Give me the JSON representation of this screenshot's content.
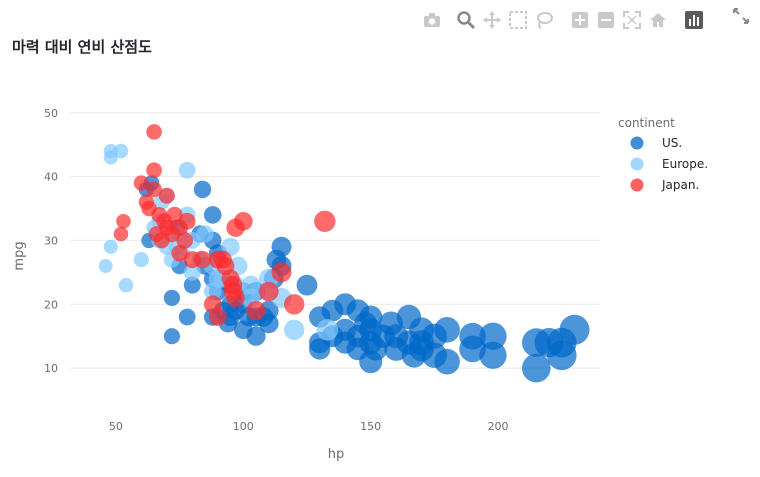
{
  "title": "마력 대비 연비 산점도",
  "modebar": {
    "icons": [
      "camera-icon",
      "zoom-icon",
      "pan-icon",
      "box-select-icon",
      "lasso-icon",
      "zoom-in-icon",
      "zoom-out-icon",
      "autoscale-icon",
      "home-icon",
      "plotly-logo-icon"
    ],
    "expand_icon": "fullscreen-icon"
  },
  "colors": {
    "US.": "#0068c9",
    "Europe.": "#83c9ff",
    "Japan.": "#ff2b2b"
  },
  "chart_data": {
    "type": "scatter",
    "xlabel": "hp",
    "ylabel": "mpg",
    "xlim": [
      32,
      240
    ],
    "ylim": [
      5,
      52
    ],
    "xticks": [
      50,
      100,
      150,
      200
    ],
    "yticks": [
      10,
      20,
      30,
      40,
      50
    ],
    "grid": true,
    "legend_title": "continent",
    "legend_position": "top-right",
    "marker_size_by": "hp",
    "series": [
      {
        "name": "US.",
        "points": [
          [
            64,
            39
          ],
          [
            62,
            38
          ],
          [
            84,
            38
          ],
          [
            88,
            34
          ],
          [
            74,
            32
          ],
          [
            83,
            31
          ],
          [
            88,
            30
          ],
          [
            90,
            28
          ],
          [
            63,
            30
          ],
          [
            75,
            26
          ],
          [
            85,
            26
          ],
          [
            72,
            21
          ],
          [
            78,
            18
          ],
          [
            80,
            23
          ],
          [
            88,
            24
          ],
          [
            90,
            22
          ],
          [
            95,
            20
          ],
          [
            95,
            18
          ],
          [
            97,
            19
          ],
          [
            100,
            20
          ],
          [
            100,
            16
          ],
          [
            105,
            18
          ],
          [
            105,
            22
          ],
          [
            108,
            18
          ],
          [
            110,
            17
          ],
          [
            110,
            19
          ],
          [
            112,
            24
          ],
          [
            113,
            27
          ],
          [
            115,
            26
          ],
          [
            115,
            29
          ],
          [
            72,
            15
          ],
          [
            88,
            18
          ],
          [
            92,
            19
          ],
          [
            94,
            17
          ],
          [
            95,
            23
          ],
          [
            100,
            22
          ],
          [
            102,
            18
          ],
          [
            105,
            15
          ],
          [
            125,
            23
          ],
          [
            130,
            14
          ],
          [
            130,
            18
          ],
          [
            135,
            19
          ],
          [
            140,
            20
          ],
          [
            140,
            16
          ],
          [
            140,
            14
          ],
          [
            145,
            19
          ],
          [
            145,
            15
          ],
          [
            148,
            17
          ],
          [
            150,
            18
          ],
          [
            150,
            14
          ],
          [
            150,
            16
          ],
          [
            152,
            13
          ],
          [
            155,
            15
          ],
          [
            158,
            17
          ],
          [
            160,
            13
          ],
          [
            165,
            14
          ],
          [
            165,
            18
          ],
          [
            167,
            12
          ],
          [
            170,
            16
          ],
          [
            170,
            13
          ],
          [
            175,
            15
          ],
          [
            175,
            12
          ],
          [
            180,
            11
          ],
          [
            180,
            16
          ],
          [
            190,
            15
          ],
          [
            190,
            13
          ],
          [
            198,
            15
          ],
          [
            198,
            12
          ],
          [
            215,
            14
          ],
          [
            215,
            10
          ],
          [
            220,
            14
          ],
          [
            225,
            14
          ],
          [
            225,
            12
          ],
          [
            230,
            16
          ],
          [
            150,
            11
          ],
          [
            145,
            13
          ],
          [
            135,
            15
          ],
          [
            160,
            15
          ],
          [
            170,
            14
          ],
          [
            130,
            13
          ]
        ]
      },
      {
        "name": "Europe.",
        "points": [
          [
            46,
            26
          ],
          [
            48,
            44
          ],
          [
            48,
            43
          ],
          [
            48,
            29
          ],
          [
            52,
            44
          ],
          [
            54,
            23
          ],
          [
            60,
            27
          ],
          [
            65,
            32
          ],
          [
            67,
            30
          ],
          [
            67,
            33
          ],
          [
            68,
            36
          ],
          [
            70,
            37
          ],
          [
            70,
            29
          ],
          [
            71,
            31
          ],
          [
            72,
            27
          ],
          [
            74,
            29
          ],
          [
            75,
            31
          ],
          [
            76,
            28
          ],
          [
            78,
            41
          ],
          [
            78,
            34
          ],
          [
            80,
            30
          ],
          [
            80,
            25
          ],
          [
            83,
            27
          ],
          [
            85,
            31
          ],
          [
            88,
            22
          ],
          [
            88,
            26
          ],
          [
            90,
            24
          ],
          [
            92,
            24
          ],
          [
            95,
            29
          ],
          [
            97,
            23
          ],
          [
            98,
            26
          ],
          [
            103,
            23
          ],
          [
            103,
            21
          ],
          [
            110,
            22
          ],
          [
            110,
            24
          ],
          [
            115,
            21
          ],
          [
            120,
            16
          ],
          [
            133,
            16
          ]
        ]
      },
      {
        "name": "Japan.",
        "points": [
          [
            60,
            39
          ],
          [
            62,
            36
          ],
          [
            63,
            35
          ],
          [
            65,
            47
          ],
          [
            65,
            41
          ],
          [
            65,
            38
          ],
          [
            66,
            31
          ],
          [
            67,
            34
          ],
          [
            68,
            30
          ],
          [
            69,
            33
          ],
          [
            70,
            37
          ],
          [
            70,
            32
          ],
          [
            72,
            31
          ],
          [
            73,
            34
          ],
          [
            75,
            32
          ],
          [
            75,
            28
          ],
          [
            77,
            30
          ],
          [
            78,
            33
          ],
          [
            80,
            27
          ],
          [
            84,
            27
          ],
          [
            88,
            20
          ],
          [
            90,
            27
          ],
          [
            90,
            18
          ],
          [
            92,
            27
          ],
          [
            93,
            26
          ],
          [
            95,
            24
          ],
          [
            96,
            23
          ],
          [
            96,
            22
          ],
          [
            97,
            21
          ],
          [
            97,
            32
          ],
          [
            100,
            33
          ],
          [
            105,
            19
          ],
          [
            110,
            22
          ],
          [
            115,
            25
          ],
          [
            120,
            20
          ],
          [
            132,
            33
          ],
          [
            52,
            31
          ],
          [
            53,
            33
          ]
        ]
      }
    ]
  }
}
